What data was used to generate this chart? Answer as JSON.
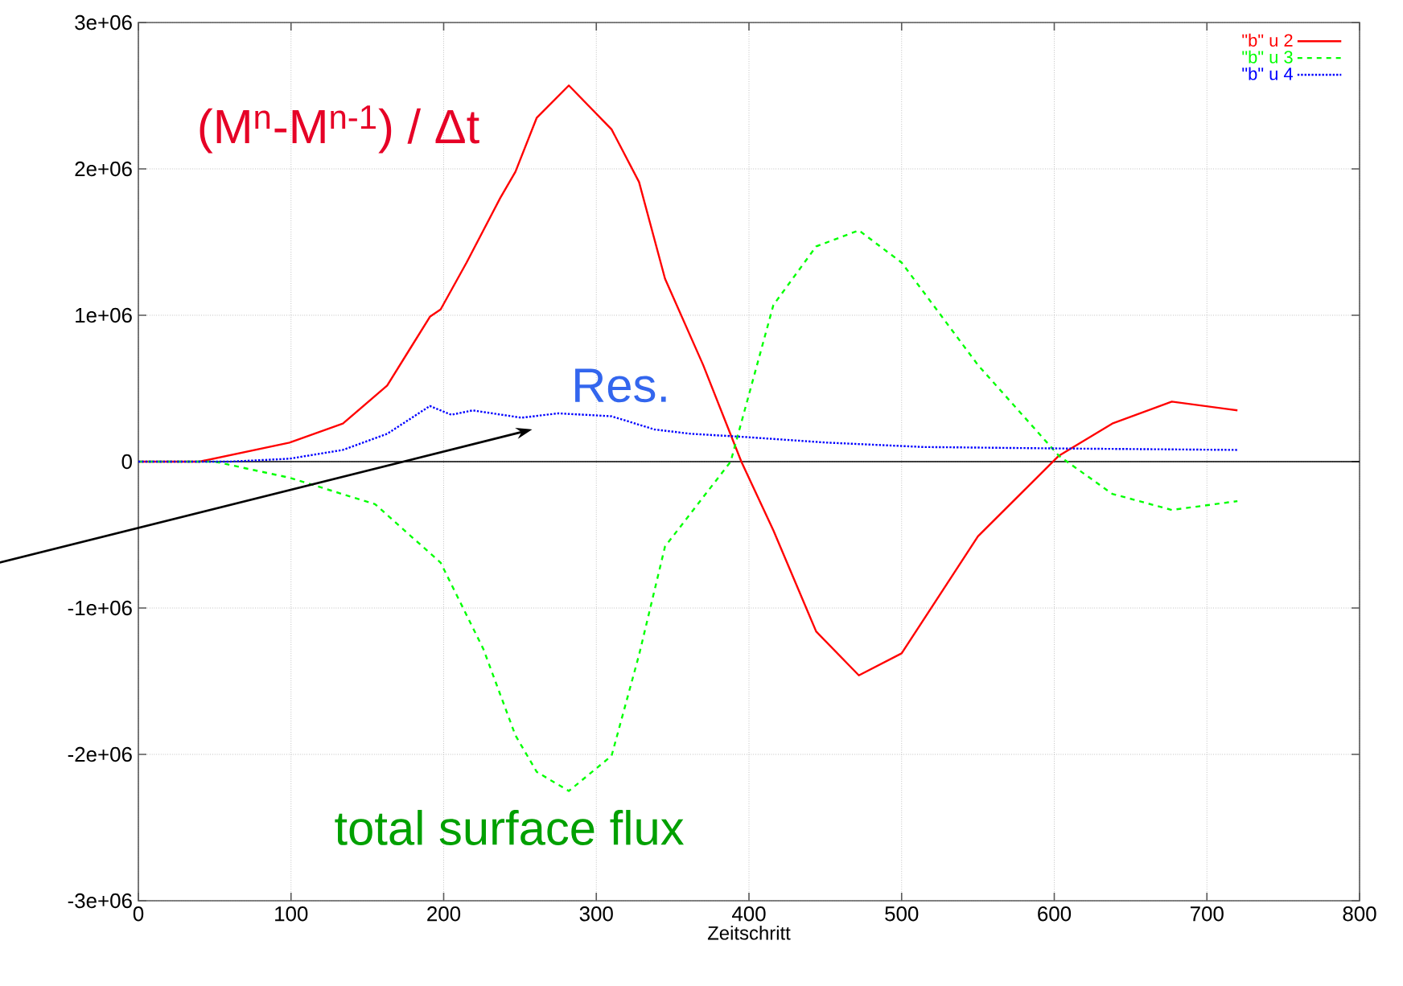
{
  "chart_data": {
    "type": "line",
    "xlabel": "Zeitschritt",
    "xlim": [
      0,
      800
    ],
    "xticks": [
      0,
      100,
      200,
      300,
      400,
      500,
      600,
      700,
      800
    ],
    "ylim": [
      -3000000,
      3000000
    ],
    "yticks": [
      {
        "value": -3000000,
        "label": "-3e+06"
      },
      {
        "value": -2000000,
        "label": "-2e+06"
      },
      {
        "value": -1000000,
        "label": "-1e+06"
      },
      0,
      {
        "value": 1000000,
        "label": "1e+06"
      },
      {
        "value": 2000000,
        "label": "2e+06"
      },
      {
        "value": 3000000,
        "label": "3e+06"
      }
    ],
    "grid": true,
    "legend": "top right",
    "marker": "none",
    "ref_lines": [
      {
        "axis": "y",
        "value": 0,
        "color": "#000000"
      }
    ],
    "annotations": [
      "(M$^{n}$-M$^{n-1}$) / Δt",
      "Res.",
      "total surface flux"
    ],
    "series": [
      {
        "name": "\"b\" u 2",
        "color": "#ff0000",
        "line_style": "solid",
        "x": [
          0,
          40,
          99,
          134,
          163,
          191,
          198,
          215,
          237,
          247,
          261,
          282,
          310,
          328,
          345,
          370,
          395,
          416,
          444,
          472,
          500,
          550,
          603,
          638,
          677,
          720
        ],
        "values": [
          0,
          0,
          130000,
          260000,
          520000,
          990000,
          1040000,
          1360000,
          1800000,
          1980000,
          2350000,
          2570000,
          2270000,
          1910000,
          1250000,
          660000,
          0,
          -470000,
          -1160000,
          -1460000,
          -1310000,
          -510000,
          40000,
          260000,
          410000,
          350000
        ]
      },
      {
        "name": "\"b\" u 3",
        "color": "#00ff00",
        "line_style": "dashed",
        "x": [
          0,
          50,
          99,
          155,
          198,
          226,
          247,
          261,
          282,
          310,
          328,
          345,
          388,
          416,
          444,
          472,
          500,
          550,
          603,
          638,
          677,
          720
        ],
        "values": [
          0,
          0,
          -110000,
          -290000,
          -690000,
          -1280000,
          -1870000,
          -2120000,
          -2250000,
          -2010000,
          -1320000,
          -580000,
          0,
          1070000,
          1470000,
          1580000,
          1360000,
          660000,
          40000,
          -220000,
          -330000,
          -270000
        ]
      },
      {
        "name": "\"b\" u 4",
        "color": "#0000ff",
        "line_style": "dotted",
        "x": [
          0,
          60,
          99,
          134,
          163,
          191,
          205,
          219,
          251,
          275,
          310,
          338,
          362,
          395,
          451,
          514,
          603,
          720
        ],
        "values": [
          0,
          0,
          20000,
          80000,
          190000,
          380000,
          320000,
          350000,
          300000,
          330000,
          310000,
          220000,
          190000,
          170000,
          130000,
          100000,
          90000,
          80000
        ]
      }
    ]
  }
}
